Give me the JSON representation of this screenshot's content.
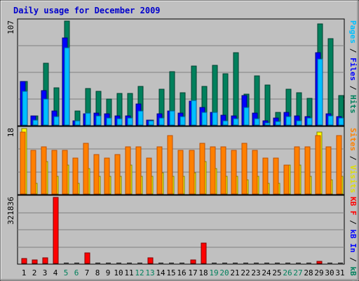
{
  "chart_data": [
    {
      "type": "bar",
      "title": "Daily usage for December 2009",
      "ymax_label": "107",
      "ylabel_parts": [
        "Pages",
        "Files",
        "Hits"
      ],
      "ylim": [
        0,
        107
      ],
      "grid": true,
      "categories": [
        "1",
        "2",
        "3",
        "4",
        "5",
        "6",
        "7",
        "8",
        "9",
        "10",
        "11",
        "12",
        "13",
        "14",
        "15",
        "16",
        "17",
        "18",
        "19",
        "20",
        "21",
        "22",
        "23",
        "24",
        "25",
        "26",
        "27",
        "28",
        "29",
        "30",
        "31"
      ],
      "weekend_days": [
        "5",
        "6",
        "12",
        "13",
        "19",
        "20",
        "26",
        "27"
      ],
      "series": [
        {
          "name": "Hits",
          "values": [
            45,
            10,
            64,
            39,
            107,
            15,
            38,
            35,
            27,
            33,
            33,
            40,
            6,
            37,
            55,
            34,
            61,
            40,
            62,
            53,
            75,
            32,
            51,
            42,
            14,
            37,
            34,
            28,
            104,
            89,
            31
          ]
        },
        {
          "name": "Files",
          "values": [
            45,
            10,
            36,
            15,
            90,
            5,
            12,
            13,
            12,
            10,
            10,
            22,
            6,
            12,
            15,
            13,
            25,
            19,
            14,
            11,
            10,
            31,
            13,
            5,
            8,
            14,
            10,
            9,
            75,
            12,
            9
          ]
        },
        {
          "name": "Pages",
          "values": [
            35,
            6,
            27,
            9,
            80,
            5,
            13,
            10,
            8,
            7,
            8,
            15,
            5,
            8,
            15,
            9,
            26,
            14,
            14,
            5,
            7,
            19,
            7,
            3,
            4,
            9,
            5,
            8,
            68,
            10,
            8
          ]
        }
      ]
    },
    {
      "type": "bar",
      "ymax_label": "18",
      "ylabel_parts": [
        "Sites",
        "Visits"
      ],
      "ylim": [
        0,
        18
      ],
      "grid": true,
      "categories": [
        "1",
        "2",
        "3",
        "4",
        "5",
        "6",
        "7",
        "8",
        "9",
        "10",
        "11",
        "12",
        "13",
        "14",
        "15",
        "16",
        "17",
        "18",
        "19",
        "20",
        "21",
        "22",
        "23",
        "24",
        "25",
        "26",
        "27",
        "28",
        "29",
        "30",
        "31"
      ],
      "series": [
        {
          "name": "Visits",
          "values": [
            18,
            3,
            9,
            5,
            8,
            3,
            7,
            5,
            5,
            5,
            8,
            5,
            5,
            6,
            5,
            5,
            6,
            9,
            7,
            5,
            5,
            4,
            5,
            3,
            3,
            8,
            8,
            5,
            17,
            4,
            5
          ]
        },
        {
          "name": "Sites",
          "values": [
            17,
            12,
            13,
            12,
            12,
            10,
            14,
            11,
            10,
            11,
            13,
            13,
            10,
            13,
            16,
            12,
            12,
            14,
            13,
            13,
            12,
            14,
            12,
            10,
            10,
            8,
            13,
            13,
            16,
            13,
            16
          ]
        }
      ]
    },
    {
      "type": "bar",
      "ymax_label": "321836",
      "ylabel_parts": [
        "KBytes",
        "kB In",
        "kB Out"
      ],
      "ylim": [
        0,
        321836
      ],
      "grid": true,
      "categories": [
        "1",
        "2",
        "3",
        "4",
        "5",
        "6",
        "7",
        "8",
        "9",
        "10",
        "11",
        "12",
        "13",
        "14",
        "15",
        "16",
        "17",
        "18",
        "19",
        "20",
        "21",
        "22",
        "23",
        "24",
        "25",
        "26",
        "27",
        "28",
        "29",
        "30",
        "31"
      ],
      "series": [
        {
          "name": "KBytes",
          "values": [
            28000,
            22000,
            30000,
            321836,
            0,
            0,
            55000,
            0,
            0,
            0,
            0,
            0,
            30000,
            0,
            0,
            0,
            20000,
            100000,
            0,
            0,
            0,
            0,
            0,
            0,
            0,
            0,
            0,
            0,
            15000,
            0,
            0
          ]
        }
      ]
    }
  ]
}
